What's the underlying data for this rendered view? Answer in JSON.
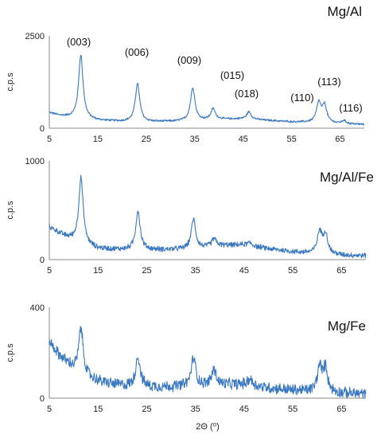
{
  "figure": {
    "xlabel": "2Θ (⁰)",
    "line_color": "#3a78c2"
  },
  "chart_data": [
    {
      "type": "line",
      "title": "Mg/Al",
      "ylabel": "c.p.s",
      "xlim": [
        5,
        70
      ],
      "ylim": [
        0,
        2500
      ],
      "xticks": [
        5,
        15,
        25,
        35,
        45,
        55,
        65
      ],
      "yticks": [
        0,
        2500
      ],
      "baseline": [
        [
          5,
          420
        ],
        [
          7,
          340
        ],
        [
          10,
          280
        ],
        [
          15,
          210
        ],
        [
          20,
          180
        ],
        [
          25,
          170
        ],
        [
          30,
          180
        ],
        [
          35,
          200
        ],
        [
          40,
          240
        ],
        [
          45,
          250
        ],
        [
          50,
          210
        ],
        [
          55,
          170
        ],
        [
          60,
          150
        ],
        [
          65,
          120
        ],
        [
          70,
          100
        ]
      ],
      "peaks": [
        {
          "label": "(003)",
          "x": 11.5,
          "y": 1980
        },
        {
          "label": "(006)",
          "x": 23.2,
          "y": 1200
        },
        {
          "label": "(009)",
          "x": 34.6,
          "y": 1100
        },
        {
          "label": "(015)",
          "x": 38.8,
          "y": 520
        },
        {
          "label": "(018)",
          "x": 46.2,
          "y": 440
        },
        {
          "label": "(110)",
          "x": 60.6,
          "y": 680
        },
        {
          "label": "(113)",
          "x": 61.8,
          "y": 600
        },
        {
          "label": "(116)",
          "x": 65.8,
          "y": 200
        }
      ]
    },
    {
      "type": "line",
      "title": "Mg/Al/Fe",
      "ylabel": "c.p.s",
      "xlim": [
        5,
        70
      ],
      "ylim": [
        0,
        1000
      ],
      "xticks": [
        5,
        15,
        25,
        35,
        45,
        55,
        65
      ],
      "yticks": [
        0,
        1000
      ],
      "baseline": [
        [
          5,
          330
        ],
        [
          8,
          240
        ],
        [
          12,
          150
        ],
        [
          15,
          110
        ],
        [
          20,
          100
        ],
        [
          25,
          100
        ],
        [
          30,
          100
        ],
        [
          35,
          110
        ],
        [
          40,
          140
        ],
        [
          45,
          150
        ],
        [
          50,
          110
        ],
        [
          55,
          80
        ],
        [
          60,
          60
        ],
        [
          65,
          45
        ],
        [
          70,
          40
        ]
      ],
      "peaks": [
        {
          "x": 11.5,
          "y": 830
        },
        {
          "x": 23.2,
          "y": 490
        },
        {
          "x": 34.6,
          "y": 410
        },
        {
          "x": 38.8,
          "y": 210
        },
        {
          "x": 46.2,
          "y": 170
        },
        {
          "x": 60.5,
          "y": 280
        },
        {
          "x": 61.7,
          "y": 260
        }
      ]
    },
    {
      "type": "line",
      "title": "Mg/Fe",
      "ylabel": "c.p.s",
      "xlim": [
        5,
        70
      ],
      "ylim": [
        0,
        400
      ],
      "xticks": [
        5,
        15,
        25,
        35,
        45,
        55,
        65
      ],
      "yticks": [
        0,
        400
      ],
      "baseline": [
        [
          5,
          250
        ],
        [
          7,
          190
        ],
        [
          10,
          130
        ],
        [
          13,
          90
        ],
        [
          16,
          70
        ],
        [
          20,
          55
        ],
        [
          25,
          50
        ],
        [
          30,
          50
        ],
        [
          35,
          55
        ],
        [
          40,
          60
        ],
        [
          45,
          60
        ],
        [
          50,
          45
        ],
        [
          55,
          35
        ],
        [
          60,
          28
        ],
        [
          65,
          22
        ],
        [
          70,
          18
        ]
      ],
      "peaks": [
        {
          "x": 11.5,
          "y": 310
        },
        {
          "x": 23.2,
          "y": 185
        },
        {
          "x": 34.6,
          "y": 180
        },
        {
          "x": 38.8,
          "y": 125
        },
        {
          "x": 46.2,
          "y": 85
        },
        {
          "x": 60.5,
          "y": 135
        },
        {
          "x": 61.7,
          "y": 130
        }
      ]
    }
  ]
}
